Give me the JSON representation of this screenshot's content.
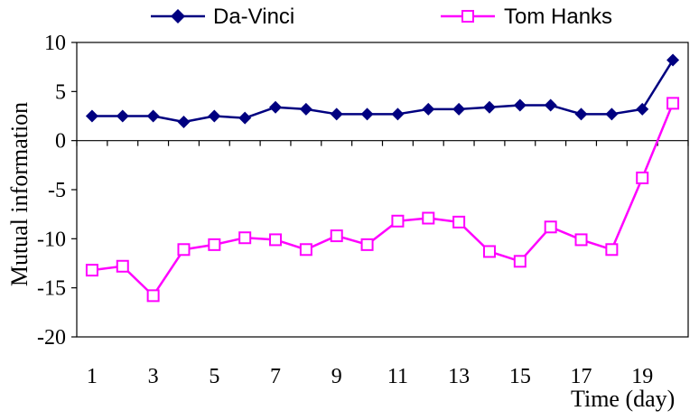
{
  "chart_data": {
    "type": "line",
    "title": "",
    "xlabel": "Time (day)",
    "ylabel": "Mutual information",
    "x": [
      1,
      2,
      3,
      4,
      5,
      6,
      7,
      8,
      9,
      10,
      11,
      12,
      13,
      14,
      15,
      16,
      17,
      18,
      19,
      20
    ],
    "x_tick_labels": [
      "1",
      "3",
      "5",
      "7",
      "9",
      "11",
      "13",
      "15",
      "17",
      "19"
    ],
    "y_tick_labels": [
      "10",
      "5",
      "0",
      "-5",
      "-10",
      "-15",
      "-20"
    ],
    "y_ticks": [
      10,
      5,
      0,
      -5,
      -10,
      -15,
      -20
    ],
    "ylim": [
      -20,
      10
    ],
    "xlim": [
      0.5,
      20.5
    ],
    "grid": false,
    "legend_position": "top",
    "series": [
      {
        "name": "Da-Vinci",
        "color": "#000080",
        "marker": "filled-diamond",
        "values": [
          2.5,
          2.5,
          2.5,
          1.9,
          2.5,
          2.3,
          3.4,
          3.2,
          2.7,
          2.7,
          2.7,
          3.2,
          3.2,
          3.4,
          3.6,
          3.6,
          2.7,
          2.7,
          3.2,
          8.2
        ]
      },
      {
        "name": "Tom Hanks",
        "color": "#ff00ff",
        "marker": "hollow-square",
        "values": [
          -13.2,
          -12.8,
          -15.8,
          -11.1,
          -10.6,
          -9.9,
          -10.1,
          -11.1,
          -9.7,
          -10.6,
          -8.2,
          -7.9,
          -8.3,
          -11.3,
          -12.3,
          -8.8,
          -10.1,
          -11.1,
          -3.8,
          3.8
        ]
      }
    ]
  }
}
